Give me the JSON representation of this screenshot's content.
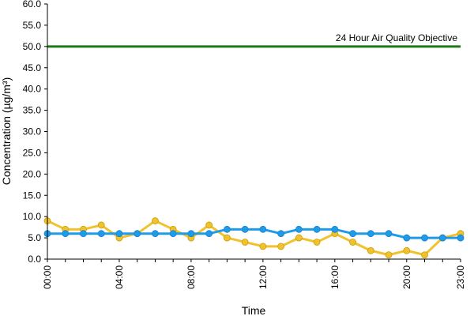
{
  "chart_data": {
    "type": "line",
    "xlabel": "Time",
    "ylabel": "Concentration (µg/m³)",
    "ylim": [
      0,
      60
    ],
    "yticks": [
      "0.0",
      "5.0",
      "10.0",
      "15.0",
      "20.0",
      "25.0",
      "30.0",
      "35.0",
      "40.0",
      "45.0",
      "50.0",
      "55.0",
      "60.0"
    ],
    "x": [
      "00:00",
      "01:00",
      "02:00",
      "03:00",
      "04:00",
      "05:00",
      "06:00",
      "07:00",
      "08:00",
      "09:00",
      "10:00",
      "11:00",
      "12:00",
      "13:00",
      "14:00",
      "15:00",
      "16:00",
      "17:00",
      "18:00",
      "19:00",
      "20:00",
      "21:00",
      "22:00",
      "23:00"
    ],
    "xtick_labels": [
      "00:00",
      "04:00",
      "08:00",
      "12:00",
      "16:00",
      "20:00",
      "23:00"
    ],
    "grid": false,
    "series": [
      {
        "color": "#f2c12e",
        "values": [
          9,
          7,
          7,
          8,
          5,
          6,
          9,
          7,
          5,
          8,
          5,
          4,
          3,
          3,
          5,
          4,
          6,
          4,
          2,
          1,
          2,
          1,
          5,
          6
        ]
      },
      {
        "color": "#1e9be9",
        "values": [
          6,
          6,
          6,
          6,
          6,
          6,
          6,
          6,
          6,
          6,
          7,
          7,
          7,
          6,
          7,
          7,
          7,
          6,
          6,
          6,
          5,
          5,
          5,
          5
        ]
      }
    ],
    "annotations": [
      {
        "label": "24 Hour Air Quality Objective",
        "value": 50,
        "color": "#1a7a1a"
      }
    ]
  }
}
